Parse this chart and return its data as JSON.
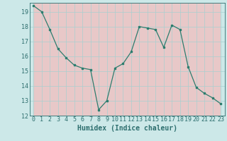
{
  "x": [
    0,
    1,
    2,
    3,
    4,
    5,
    6,
    7,
    8,
    9,
    10,
    11,
    12,
    13,
    14,
    15,
    16,
    17,
    18,
    19,
    20,
    21,
    22,
    23
  ],
  "y": [
    19.4,
    19.0,
    17.8,
    16.5,
    15.9,
    15.4,
    15.2,
    15.1,
    12.4,
    13.0,
    15.2,
    15.5,
    16.3,
    18.0,
    17.9,
    17.8,
    16.6,
    18.1,
    17.8,
    15.3,
    13.9,
    13.5,
    13.2,
    12.8
  ],
  "xlabel": "Humidex (Indice chaleur)",
  "ylim": [
    12,
    19.6
  ],
  "xlim": [
    -0.5,
    23.5
  ],
  "yticks": [
    12,
    13,
    14,
    15,
    16,
    17,
    18,
    19
  ],
  "xticks": [
    0,
    1,
    2,
    3,
    4,
    5,
    6,
    7,
    8,
    9,
    10,
    11,
    12,
    13,
    14,
    15,
    16,
    17,
    18,
    19,
    20,
    21,
    22,
    23
  ],
  "line_color": "#2d7d6e",
  "marker_color": "#2d7d6e",
  "bg_color": "#cce8e8",
  "grid_major_color": "#a8d0d0",
  "grid_minor_color": "#e8c8c8",
  "text_color": "#2d6e6e",
  "xlabel_fontsize": 7,
  "tick_fontsize": 6
}
